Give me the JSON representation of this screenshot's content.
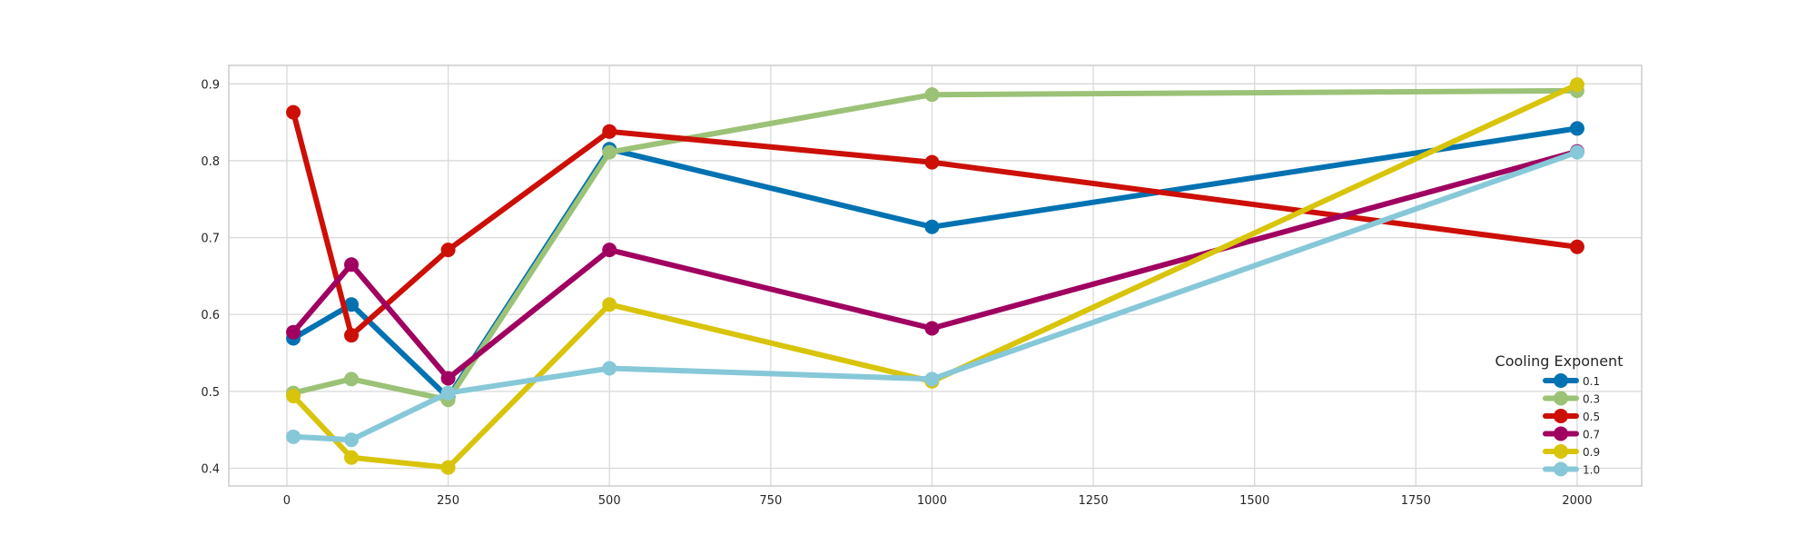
{
  "chart_data": {
    "type": "line",
    "title": "",
    "xlabel": "",
    "ylabel": "",
    "x": [
      10,
      100,
      250,
      500,
      1000,
      2000
    ],
    "xlim": [
      -90,
      2100
    ],
    "ylim": [
      0.377,
      0.924
    ],
    "x_ticks": [
      0,
      250,
      500,
      750,
      1000,
      1250,
      1500,
      1750,
      2000
    ],
    "y_ticks": [
      0.4,
      0.5,
      0.6,
      0.7,
      0.8,
      0.9
    ],
    "x_tick_labels": [
      "0",
      "250",
      "500",
      "750",
      "1000",
      "1250",
      "1500",
      "1750",
      "2000"
    ],
    "y_tick_labels": [
      "0.4",
      "0.5",
      "0.6",
      "0.7",
      "0.8",
      "0.9"
    ],
    "grid": true,
    "legend": {
      "title": "Cooling Exponent",
      "placement": "bottom-right"
    },
    "series": [
      {
        "name": "0.1",
        "color": "#0072b2",
        "values": [
          0.569,
          0.613,
          0.492,
          0.815,
          0.714,
          0.842
        ]
      },
      {
        "name": "0.3",
        "color": "#9bc276",
        "values": [
          0.498,
          0.516,
          0.489,
          0.811,
          0.886,
          0.891
        ]
      },
      {
        "name": "0.5",
        "color": "#cc0f07",
        "values": [
          0.863,
          0.573,
          0.684,
          0.838,
          0.798,
          0.688
        ]
      },
      {
        "name": "0.7",
        "color": "#a00060",
        "values": [
          0.577,
          0.665,
          0.517,
          0.684,
          0.582,
          0.812
        ]
      },
      {
        "name": "0.9",
        "color": "#d8c40a",
        "values": [
          0.494,
          0.414,
          0.401,
          0.613,
          0.513,
          0.899
        ]
      },
      {
        "name": "1.0",
        "color": "#86c8d8",
        "values": [
          0.441,
          0.437,
          0.498,
          0.53,
          0.516,
          0.811
        ]
      }
    ]
  }
}
